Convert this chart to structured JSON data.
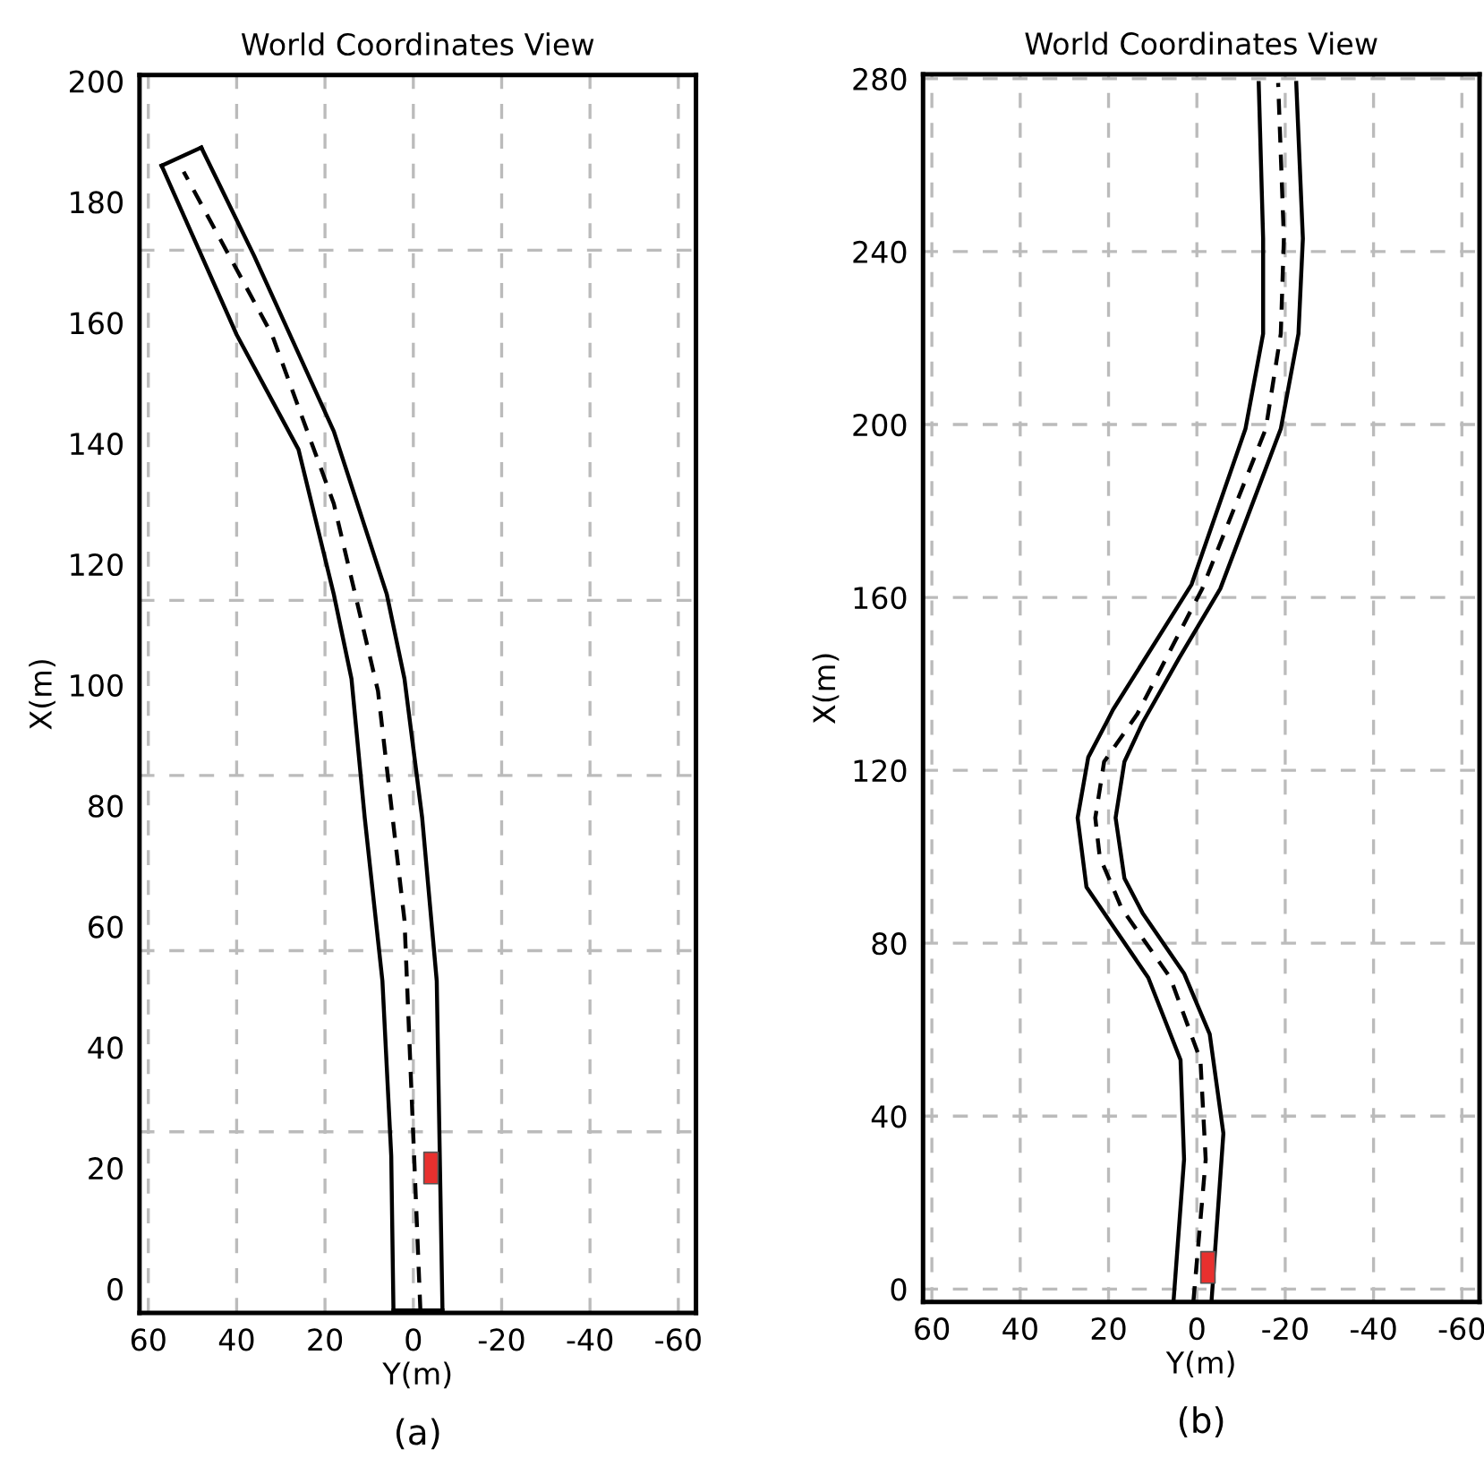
{
  "chart_data": [
    {
      "type": "line",
      "title": "World Coordinates View",
      "xlabel": "Y(m)",
      "ylabel": "X(m)",
      "xlim": [
        62,
        -64
      ],
      "xticks": [
        60,
        40,
        20,
        0,
        -20,
        -40,
        -60
      ],
      "ylim": [
        -4,
        201
      ],
      "yticks": [
        0,
        20,
        40,
        60,
        80,
        100,
        120,
        140,
        160,
        180,
        200
      ],
      "grid": "x",
      "ref_lines": [
        {
          "axis": "y",
          "value": 172,
          "color": "#bbbbbb",
          "line_style": "dashed"
        },
        {
          "axis": "y",
          "value": 114,
          "color": "#bbbbbb",
          "line_style": "dashed"
        },
        {
          "axis": "y",
          "value": 85,
          "color": "#bbbbbb",
          "line_style": "dashed"
        },
        {
          "axis": "y",
          "value": 56,
          "color": "#bbbbbb",
          "line_style": "dashed"
        },
        {
          "axis": "y",
          "value": 26,
          "color": "#bbbbbb",
          "line_style": "dashed"
        }
      ],
      "annotations": [
        "(a)"
      ],
      "series": [
        {
          "color": "#000000",
          "line_style": "solid",
          "x": [
            4.5,
            5,
            7,
            11,
            14,
            18,
            26,
            40,
            57
          ],
          "values": [
            -3.6,
            22,
            51,
            78,
            101,
            115,
            139,
            158,
            186
          ]
        },
        {
          "color": "#000000",
          "line_style": "solid",
          "x": [
            48,
            36,
            18,
            6,
            2,
            -2,
            -5.3,
            -6.6
          ],
          "values": [
            189,
            171,
            142,
            115,
            101,
            78,
            51,
            -3.6
          ]
        },
        {
          "color": "#000000",
          "line_style": "solid",
          "x": [
            57,
            48
          ],
          "values": [
            186,
            189
          ]
        },
        {
          "color": "#000000",
          "line_style": "solid",
          "x": [
            4.5,
            -6.6
          ],
          "values": [
            -3.6,
            -3.6
          ]
        },
        {
          "color": "#000000",
          "line_style": "dashed",
          "x": [
            -1.6,
            2,
            8,
            18,
            32,
            52
          ],
          "values": [
            -3.6,
            61,
            99,
            130,
            158,
            185
          ]
        },
        {
          "type": "scatter",
          "marker": "square",
          "color": "#e8302e",
          "x": [
            -4
          ],
          "values": [
            20
          ]
        }
      ]
    },
    {
      "type": "line",
      "title": "World Coordinates View",
      "xlabel": "Y(m)",
      "ylabel": "X(m)",
      "xlim": [
        62,
        -64
      ],
      "xticks": [
        60,
        40,
        20,
        0,
        -20,
        -40,
        -60
      ],
      "ylim": [
        -3,
        281
      ],
      "yticks": [
        0,
        40,
        80,
        120,
        160,
        200,
        240,
        280
      ],
      "grid": true,
      "annotations": [
        "(b)"
      ],
      "series": [
        {
          "color": "#000000",
          "line_style": "solid",
          "x": [
            5.3,
            2.9,
            3.7,
            11,
            19,
            25,
            27,
            24.6,
            20.5,
            19,
            1.2,
            -11,
            -15,
            -15,
            -14
          ],
          "values": [
            -3,
            30,
            53,
            72,
            84,
            93,
            109,
            123,
            131,
            134,
            163,
            199,
            221,
            243,
            279
          ]
        },
        {
          "color": "#000000",
          "line_style": "solid",
          "x": [
            -3.3,
            -6,
            -2.9,
            2.9,
            12.3,
            16.4,
            18.4,
            16.4,
            12.3,
            4,
            -5.3,
            -19,
            -23,
            -24,
            -22.5
          ],
          "values": [
            -3,
            36,
            59,
            73,
            87,
            95,
            109,
            122,
            131,
            146,
            162,
            199,
            221,
            243,
            279
          ]
        },
        {
          "color": "#000000",
          "line_style": "dashed",
          "x": [
            0.8,
            -2,
            -0.8,
            6,
            17,
            22,
            23,
            21,
            13.5,
            -1.2,
            -15.6,
            -19,
            -19.7,
            -18.4
          ],
          "values": [
            -3,
            30,
            53,
            72,
            88,
            100,
            109,
            122,
            133,
            162,
            199,
            221,
            243,
            279
          ]
        },
        {
          "type": "scatter",
          "marker": "square",
          "color": "#e8302e",
          "x": [
            -2.5
          ],
          "values": [
            5
          ]
        }
      ]
    }
  ]
}
